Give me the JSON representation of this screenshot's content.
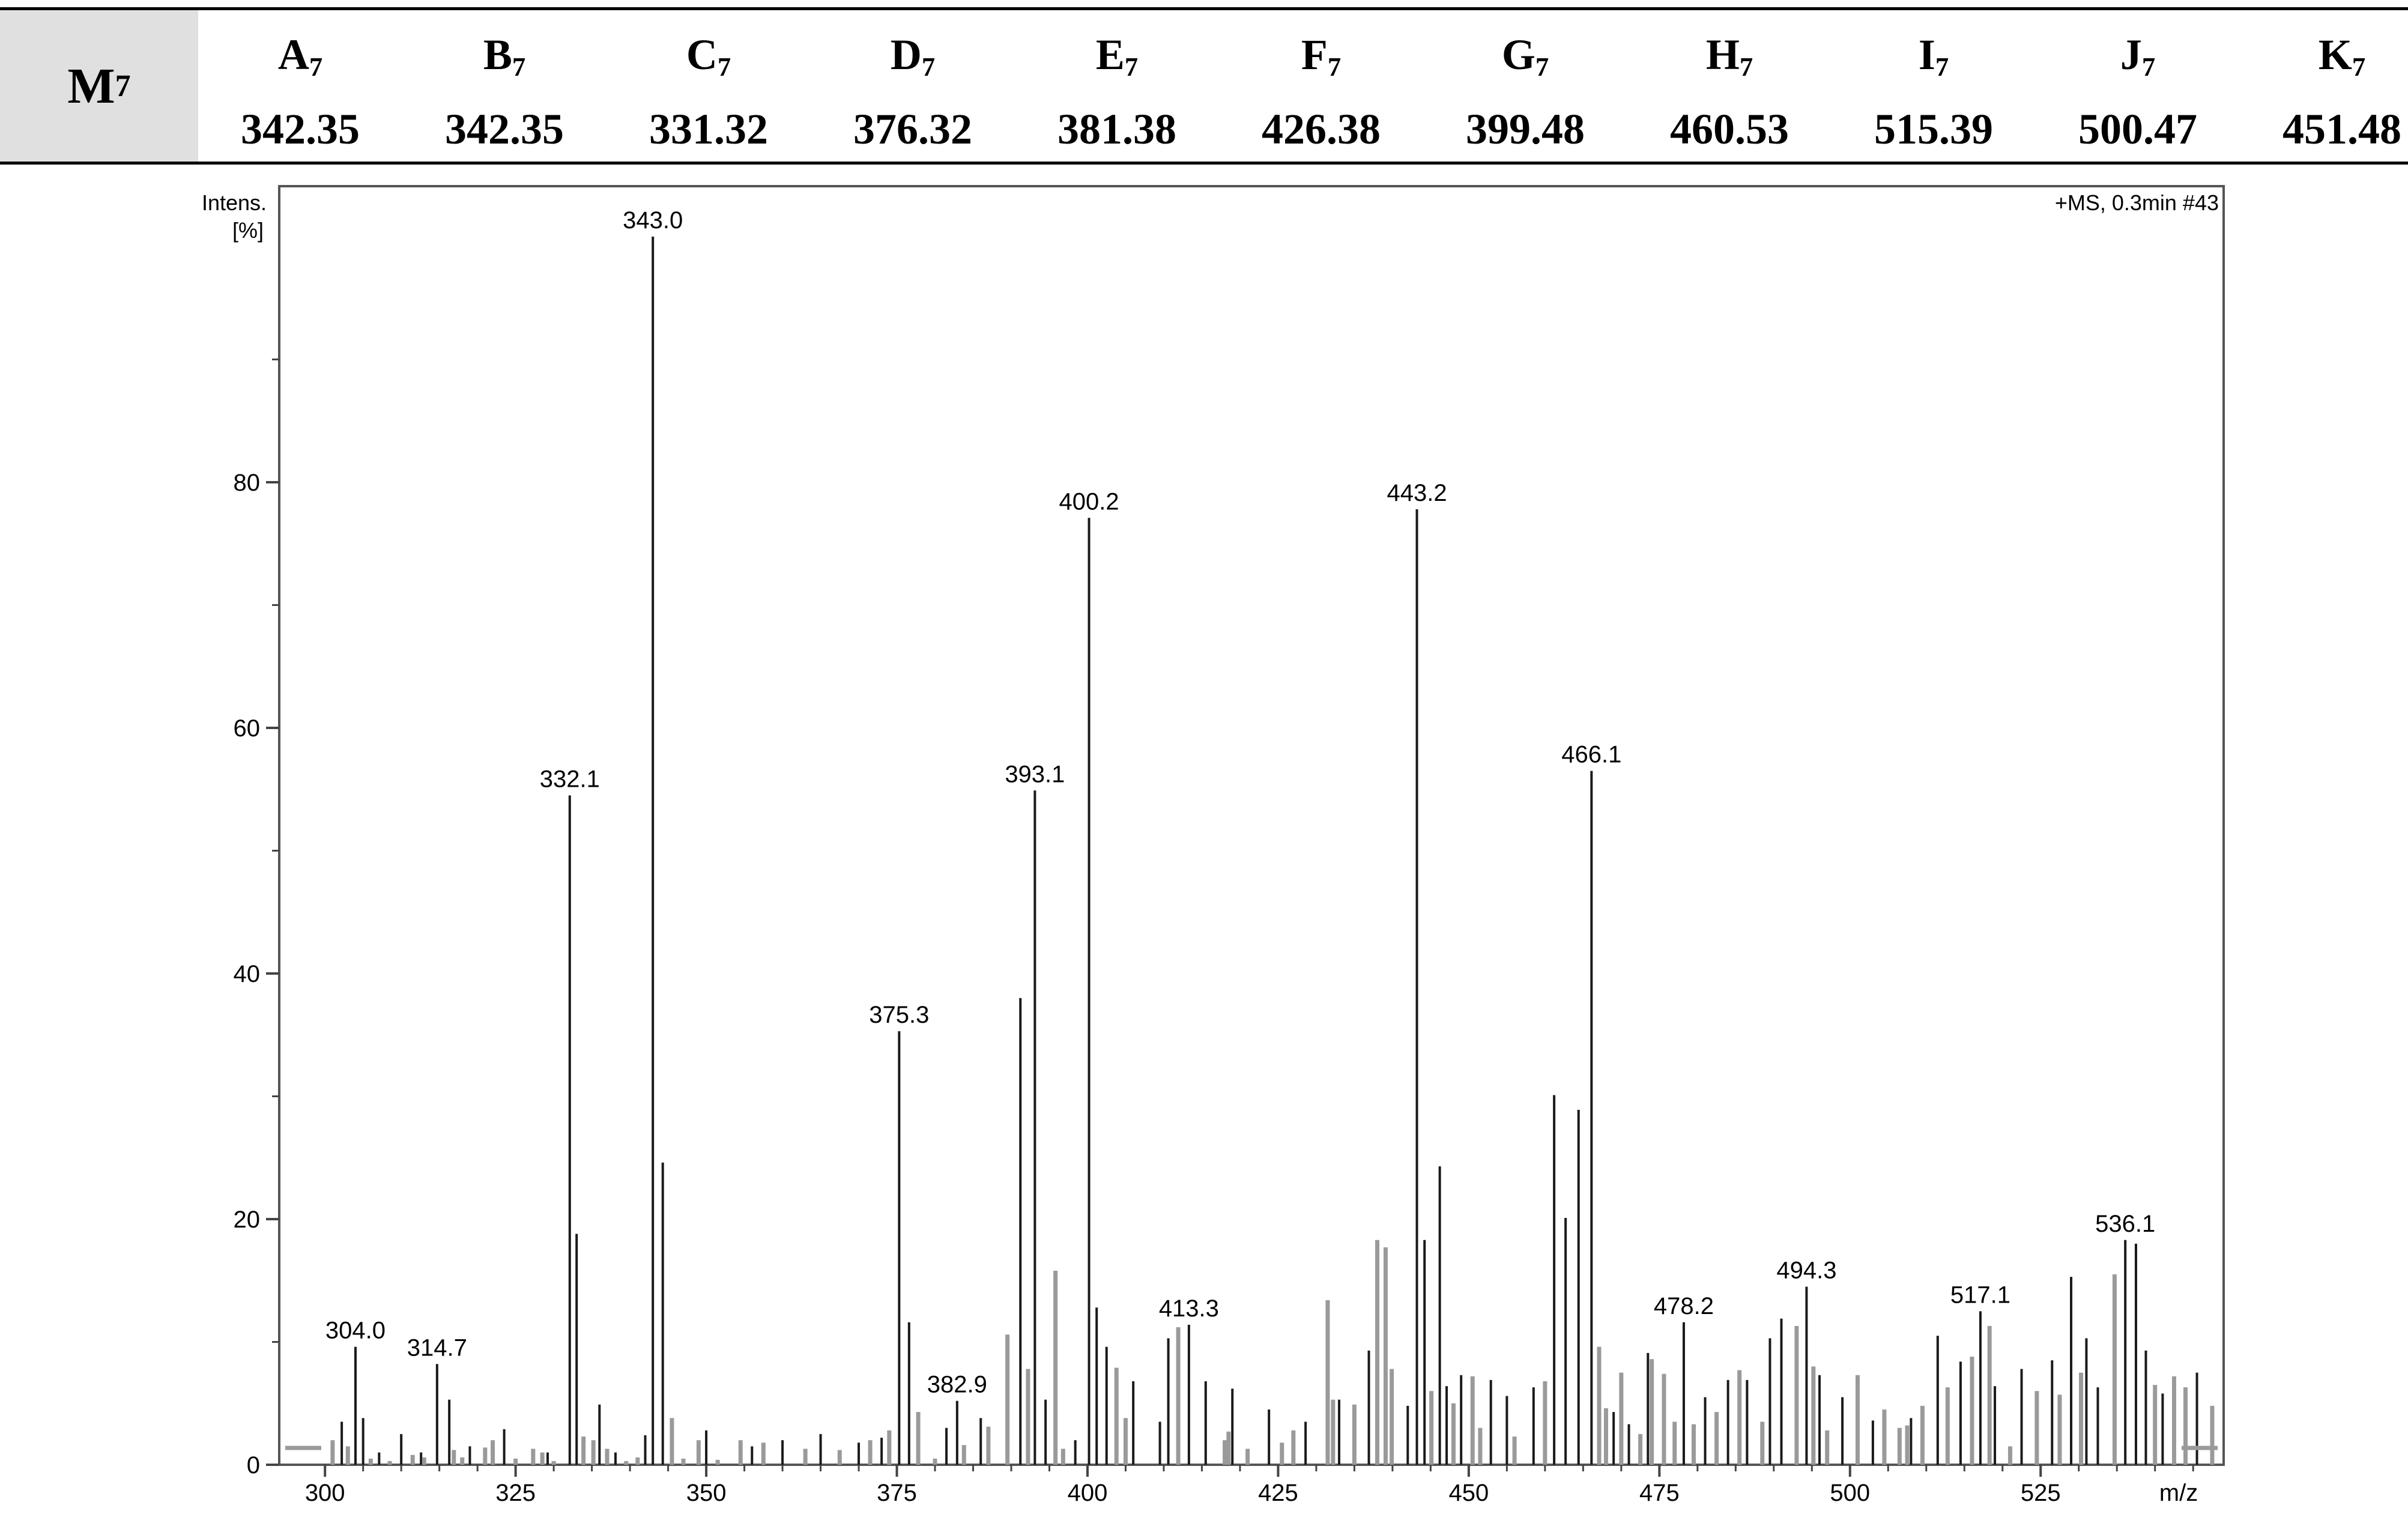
{
  "table": {
    "row_label": {
      "letter": "M",
      "sub": "7"
    },
    "columns": [
      {
        "letter": "A",
        "sub": "7",
        "value": "342.35"
      },
      {
        "letter": "B",
        "sub": "7",
        "value": "342.35"
      },
      {
        "letter": "C",
        "sub": "7",
        "value": "331.32"
      },
      {
        "letter": "D",
        "sub": "7",
        "value": "376.32"
      },
      {
        "letter": "E",
        "sub": "7",
        "value": "381.38"
      },
      {
        "letter": "F",
        "sub": "7",
        "value": "426.38"
      },
      {
        "letter": "G",
        "sub": "7",
        "value": "399.48"
      },
      {
        "letter": "H",
        "sub": "7",
        "value": "460.53"
      },
      {
        "letter": "I",
        "sub": "7",
        "value": "515.39"
      },
      {
        "letter": "J",
        "sub": "7",
        "value": "500.47"
      },
      {
        "letter": "K",
        "sub": "7",
        "value": "451.48"
      }
    ]
  },
  "chart_data": {
    "type": "bar",
    "title": "",
    "corner_label": "+MS, 0.3min #43",
    "ylabel_line1": "Intens.",
    "ylabel_line2": "[%]",
    "xlabel": "m/z",
    "xlim": [
      294,
      549
    ],
    "ylim": [
      0,
      100
    ],
    "x_ticks": [
      300,
      325,
      350,
      375,
      400,
      425,
      450,
      475,
      500,
      525
    ],
    "y_ticks": [
      0,
      20,
      40,
      60,
      80
    ],
    "y_minor_ticks": [
      10,
      30,
      50,
      70,
      90
    ],
    "colors": {
      "series_dark": "#1a1a1a",
      "series_light": "#9a9a9a",
      "frame": "#555555"
    },
    "series": [
      {
        "x": [
          302.2,
          304.0,
          305.0,
          307.1,
          310.0,
          312.6,
          314.7,
          316.3,
          319.0,
          323.5,
          329.2,
          332.1,
          333.0,
          336.0,
          338.1,
          342.0,
          343.0,
          344.3,
          350.0,
          356.0,
          360.0,
          365.0,
          370.0,
          373.0,
          375.3,
          376.6,
          381.5,
          382.9,
          386.0,
          391.2,
          393.1,
          394.5,
          398.4,
          400.2,
          401.2,
          402.5,
          406.0,
          409.5,
          410.6,
          413.3,
          415.5,
          419.0,
          423.8,
          428.6,
          433.0,
          436.9,
          442.0,
          443.2,
          444.2,
          446.2,
          447.1,
          449.0,
          452.9,
          455.0,
          458.5,
          461.2,
          462.7,
          464.4,
          466.1,
          469.0,
          471.0,
          473.5,
          478.2,
          481.0,
          484.0,
          486.5,
          489.5,
          491.0,
          494.3,
          496.0,
          499.0,
          503.0,
          508.0,
          511.5,
          514.5,
          517.1,
          519.0,
          522.5,
          526.5,
          529.0,
          531.0,
          532.5,
          536.1,
          537.5,
          538.8,
          541.0,
          545.5
        ],
        "y": [
          3.5,
          9.6,
          3.8,
          1.0,
          2.5,
          1.0,
          8.2,
          5.3,
          1.5,
          2.9,
          1.0,
          54.5,
          18.8,
          4.9,
          1.0,
          2.4,
          100.0,
          24.6,
          2.8,
          1.5,
          2.0,
          2.5,
          1.8,
          2.2,
          35.3,
          11.6,
          3.0,
          5.2,
          3.8,
          38.0,
          54.9,
          5.3,
          2.0,
          77.1,
          12.8,
          9.6,
          6.8,
          3.5,
          10.3,
          11.4,
          6.8,
          6.2,
          4.5,
          3.5,
          5.3,
          9.3,
          4.8,
          77.8,
          18.3,
          24.3,
          6.4,
          7.3,
          6.9,
          5.6,
          6.3,
          30.1,
          20.1,
          28.9,
          56.5,
          4.3,
          3.3,
          9.1,
          11.6,
          5.5,
          6.9,
          6.9,
          10.3,
          11.9,
          14.5,
          7.3,
          5.5,
          3.6,
          3.8,
          10.5,
          8.4,
          12.5,
          6.4,
          7.8,
          8.5,
          15.3,
          10.3,
          6.3,
          18.3,
          18.0,
          9.3,
          5.8,
          7.5
        ]
      },
      {
        "x": [
          301.0,
          303.0,
          306.0,
          308.5,
          311.5,
          313.0,
          316.9,
          318.0,
          321.0,
          322.0,
          325.0,
          327.3,
          328.5,
          330.0,
          333.9,
          335.2,
          337.0,
          339.5,
          341.0,
          345.5,
          347.0,
          349.0,
          351.5,
          354.5,
          357.5,
          363.0,
          367.5,
          371.5,
          374.0,
          377.8,
          380.0,
          383.8,
          387.0,
          389.5,
          392.2,
          395.8,
          396.8,
          403.8,
          405.0,
          411.9,
          418.0,
          418.5,
          421.0,
          425.5,
          427.0,
          431.5,
          432.2,
          435.0,
          438.0,
          439.1,
          439.9,
          445.1,
          448.0,
          450.5,
          451.5,
          456.0,
          460.0,
          467.1,
          468.0,
          470.0,
          472.5,
          474.0,
          475.6,
          477.0,
          479.5,
          482.5,
          485.5,
          488.5,
          493.0,
          495.2,
          497.0,
          501.0,
          504.5,
          506.5,
          507.5,
          509.5,
          512.8,
          516.0,
          518.3,
          521.0,
          524.5,
          527.5,
          530.3,
          534.7,
          540.0,
          542.5,
          544.0,
          547.5
        ],
        "y": [
          2.0,
          1.5,
          0.5,
          0.3,
          0.8,
          0.6,
          1.2,
          0.6,
          1.4,
          2.0,
          0.5,
          1.3,
          1.0,
          0.3,
          2.3,
          2.0,
          1.3,
          0.3,
          0.6,
          3.8,
          0.5,
          2.0,
          0.4,
          2.0,
          1.8,
          1.3,
          1.2,
          2.0,
          2.8,
          4.3,
          0.5,
          1.6,
          3.1,
          10.6,
          7.8,
          15.8,
          1.3,
          7.9,
          3.8,
          11.2,
          2.0,
          2.7,
          1.3,
          1.8,
          2.8,
          13.4,
          5.3,
          4.9,
          18.3,
          17.7,
          7.8,
          6.0,
          5.0,
          7.2,
          3.0,
          2.3,
          6.8,
          9.6,
          4.6,
          7.5,
          2.5,
          8.6,
          7.4,
          3.5,
          3.3,
          4.3,
          7.7,
          3.5,
          11.3,
          8.0,
          2.8,
          7.3,
          4.5,
          3.0,
          3.2,
          4.8,
          6.3,
          8.8,
          11.3,
          1.5,
          6.0,
          5.7,
          7.5,
          15.5,
          6.5,
          7.2,
          6.3,
          4.8
        ]
      }
    ],
    "peak_labels": [
      {
        "x": 304.0,
        "y": 9.6,
        "label": "304.0"
      },
      {
        "x": 314.7,
        "y": 8.2,
        "label": "314.7"
      },
      {
        "x": 332.1,
        "y": 54.5,
        "label": "332.1"
      },
      {
        "x": 343.0,
        "y": 100.0,
        "label": "343.0"
      },
      {
        "x": 375.3,
        "y": 35.3,
        "label": "375.3"
      },
      {
        "x": 382.9,
        "y": 5.2,
        "label": "382.9"
      },
      {
        "x": 393.1,
        "y": 54.9,
        "label": "393.1"
      },
      {
        "x": 400.2,
        "y": 77.1,
        "label": "400.2"
      },
      {
        "x": 413.3,
        "y": 11.4,
        "label": "413.3"
      },
      {
        "x": 443.2,
        "y": 77.8,
        "label": "443.2"
      },
      {
        "x": 466.1,
        "y": 56.5,
        "label": "466.1"
      },
      {
        "x": 478.2,
        "y": 11.6,
        "label": "478.2"
      },
      {
        "x": 494.3,
        "y": 14.5,
        "label": "494.3"
      },
      {
        "x": 517.1,
        "y": 12.5,
        "label": "517.1"
      },
      {
        "x": 536.1,
        "y": 18.3,
        "label": "536.1"
      }
    ]
  }
}
